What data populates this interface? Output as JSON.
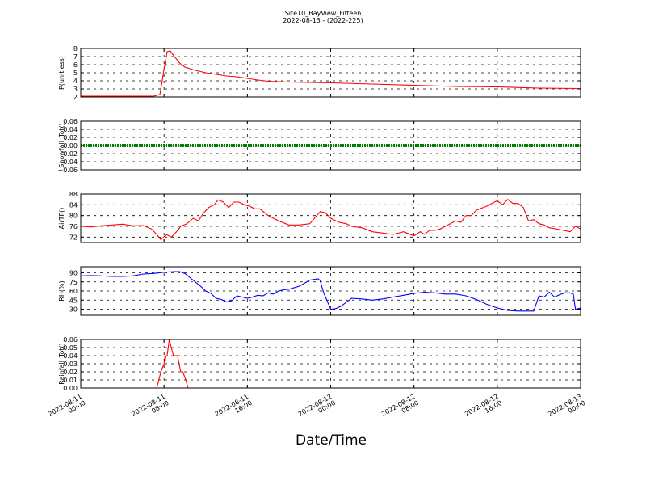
{
  "figure": {
    "title_line1": "Site10_BayView_Fifteen",
    "title_line2": "2022-08-13 - (2022-225)",
    "xlabel": "Date/Time",
    "x_ticks": [
      {
        "line1": "2022-08-11",
        "line2": "00:00"
      },
      {
        "line1": "2022-08-11",
        "line2": "08:00"
      },
      {
        "line1": "2022-08-11",
        "line2": "16:00"
      },
      {
        "line1": "2022-08-12",
        "line2": "00:00"
      },
      {
        "line1": "2022-08-12",
        "line2": "08:00"
      },
      {
        "line1": "2022-08-12",
        "line2": "16:00"
      },
      {
        "line1": "2022-08-13",
        "line2": "00:00"
      }
    ]
  },
  "chart_data": [
    {
      "type": "line",
      "ylabel": "P(unitless)",
      "ylim": [
        2,
        8
      ],
      "yticks": [
        "2",
        "3",
        "4",
        "5",
        "6",
        "7",
        "8"
      ],
      "ytick_values": [
        2,
        3,
        4,
        5,
        6,
        7,
        8
      ],
      "color": "#ff0000",
      "series": [
        {
          "x_hours": [
            0,
            1,
            2,
            3,
            4,
            5,
            6,
            7,
            7.6,
            7.8,
            8,
            8.3,
            8.6,
            9,
            9.5,
            10,
            11,
            12,
            13,
            14,
            15,
            16,
            17,
            18,
            20,
            22,
            24,
            28,
            32,
            36,
            40,
            44,
            48
          ],
          "values": [
            2.1,
            2.1,
            2.1,
            2.1,
            2.1,
            2.1,
            2.1,
            2.1,
            2.3,
            3.8,
            5.5,
            7.6,
            7.7,
            7.0,
            6.2,
            5.7,
            5.3,
            5.0,
            4.8,
            4.6,
            4.5,
            4.3,
            4.1,
            3.95,
            3.85,
            3.8,
            3.75,
            3.6,
            3.45,
            3.3,
            3.25,
            3.1,
            3.05
          ]
        }
      ]
    },
    {
      "type": "line",
      "ylabel": "Snowfall_Tot()",
      "ylim": [
        -0.06,
        0.06
      ],
      "yticks": [
        "−0.06",
        "−0.04",
        "−0.02",
        "0.00",
        "0.02",
        "0.04",
        "0.06"
      ],
      "ytick_values": [
        -0.06,
        -0.04,
        -0.02,
        0,
        0.02,
        0.04,
        0.06
      ],
      "color": "#008000",
      "series": [
        {
          "x_hours": [
            0,
            48
          ],
          "values": [
            0,
            0
          ]
        }
      ]
    },
    {
      "type": "line",
      "ylabel": "AirTF()",
      "ylim": [
        70,
        88
      ],
      "yticks": [
        "72",
        "76",
        "80",
        "84",
        "88"
      ],
      "ytick_values": [
        72,
        76,
        80,
        84,
        88
      ],
      "color": "#ff0000",
      "series": [
        {
          "x_hours": [
            0,
            1,
            2,
            3,
            4,
            5,
            6,
            6.8,
            7.3,
            7.7,
            8.2,
            8.7,
            9.2,
            9.6,
            10.2,
            10.8,
            11.3,
            11.8,
            12.3,
            12.8,
            13.2,
            13.7,
            14.2,
            14.7,
            15.2,
            15.7,
            16.2,
            16.7,
            17.2,
            18,
            19,
            20,
            21,
            22,
            23,
            23.5,
            24,
            24.8,
            25.5,
            26,
            27,
            28,
            29,
            30,
            31,
            32,
            32.6,
            33,
            33.5,
            34,
            34.5,
            35,
            36,
            36.5,
            37,
            37.5,
            38,
            39,
            40,
            40.5,
            41,
            41.5,
            42,
            42.5,
            43,
            43.5,
            44,
            44.5,
            45,
            46,
            47,
            47.5,
            48
          ],
          "values": [
            76,
            75.8,
            76.2,
            76.5,
            76.8,
            76.2,
            76.3,
            75,
            73,
            71,
            73,
            72,
            74,
            76,
            77,
            79,
            78,
            81,
            83,
            84,
            85.8,
            85,
            83,
            85,
            85,
            84,
            83.5,
            82.5,
            82.5,
            80,
            78,
            76.5,
            76.5,
            77,
            81.5,
            81,
            79,
            77.5,
            77,
            76,
            75.5,
            74,
            73.5,
            73,
            74,
            72.5,
            74,
            73,
            74.5,
            74.5,
            75,
            76,
            78,
            77.5,
            80,
            80,
            82,
            83.5,
            85.5,
            84,
            86,
            84.5,
            84.5,
            83,
            78,
            78.5,
            77,
            76.5,
            75.5,
            74.8,
            74,
            76,
            75
          ]
        }
      ]
    },
    {
      "type": "line",
      "ylabel": "RH(%)",
      "ylim": [
        20,
        100
      ],
      "yticks": [
        "30",
        "45",
        "60",
        "75",
        "90"
      ],
      "ytick_values": [
        30,
        45,
        60,
        75,
        90
      ],
      "color": "#0000ff",
      "series": [
        {
          "x_hours": [
            0,
            1,
            2,
            3,
            4,
            5,
            6,
            7,
            8,
            9,
            9.5,
            10,
            10.5,
            11,
            11.5,
            12,
            12.5,
            13,
            13.5,
            14,
            14.5,
            15,
            15.5,
            16,
            16.5,
            17,
            17.5,
            18,
            18.5,
            19,
            19.5,
            20,
            21,
            22,
            22.8,
            23,
            23.3,
            24,
            24.5,
            25,
            26,
            27,
            28,
            29,
            30,
            31,
            32,
            33,
            34,
            35,
            36,
            37,
            38,
            39,
            40,
            41,
            42,
            42.5,
            43,
            43.5,
            44,
            44.5,
            45,
            45.5,
            46,
            46.5,
            47,
            47.3,
            47.5,
            48
          ],
          "values": [
            85,
            85.5,
            85,
            84,
            84,
            85,
            88,
            89,
            91,
            92,
            92,
            89,
            82,
            75,
            68,
            60,
            56,
            48,
            46,
            42,
            44,
            52,
            50,
            48,
            50,
            53,
            52,
            57,
            55,
            60,
            62,
            63,
            68,
            78,
            80,
            77,
            58,
            30,
            31,
            35,
            48,
            47,
            45,
            47,
            50,
            53,
            56,
            58,
            57,
            55,
            55,
            52,
            46,
            38,
            32,
            28,
            27,
            27,
            27,
            27,
            52,
            50,
            58,
            50,
            54,
            57,
            57,
            55,
            30,
            32
          ]
        }
      ]
    },
    {
      "type": "line",
      "ylabel": "Rainfall_Tot()",
      "ylim": [
        0,
        0.06
      ],
      "yticks": [
        "0.00",
        "0.01",
        "0.02",
        "0.03",
        "0.04",
        "0.05",
        "0.06"
      ],
      "ytick_values": [
        0,
        0.01,
        0.02,
        0.03,
        0.04,
        0.05,
        0.06
      ],
      "color": "#ff0000",
      "series": [
        {
          "x_hours": [
            0,
            7.3,
            7.5,
            7.7,
            8,
            8.1,
            8.3,
            8.5,
            8.7,
            8.9,
            9.2,
            9.3,
            9.6,
            9.8,
            10.1,
            10.3,
            48
          ],
          "values": [
            0,
            0,
            0.01,
            0.02,
            0.03,
            0.04,
            0.04,
            0.06,
            0.05,
            0.04,
            0.04,
            0.04,
            0.02,
            0.02,
            0.01,
            0,
            0
          ]
        }
      ]
    }
  ]
}
